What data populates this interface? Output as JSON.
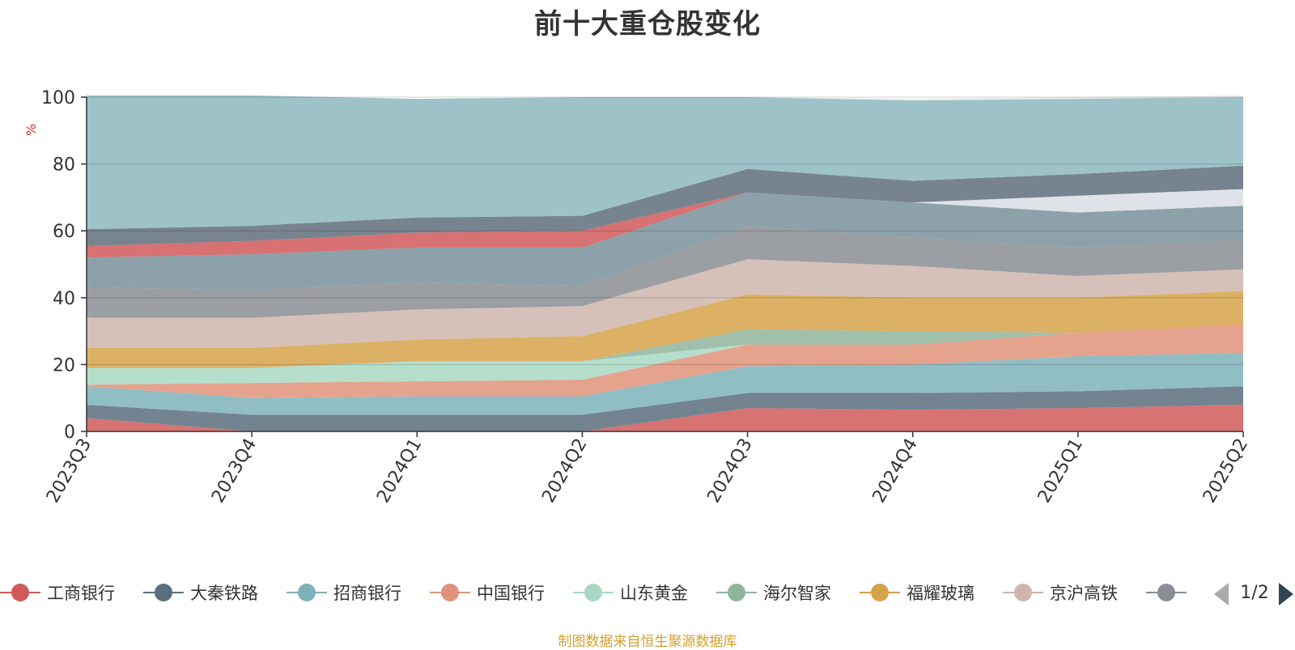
{
  "footer": "制图数据来自恒生聚源数据库",
  "legend_page": "1/2",
  "chart_data": {
    "type": "area",
    "stacked": true,
    "title": "前十大重仓股变化",
    "ylabel": "%",
    "ylim": [
      0,
      100
    ],
    "yticks": [
      0,
      20,
      40,
      60,
      80,
      100
    ],
    "grid": true,
    "legend_position": "bottom",
    "categories": [
      "2023Q3",
      "2023Q4",
      "2024Q1",
      "2024Q2",
      "2024Q3",
      "2024Q4",
      "2025Q1",
      "2025Q2"
    ],
    "series": [
      {
        "name": "工商银行",
        "color": "#d05a5a",
        "values": [
          4,
          0,
          0,
          0,
          7,
          6.5,
          7,
          8
        ]
      },
      {
        "name": "大秦铁路",
        "color": "#5b6e7d",
        "values": [
          4,
          5,
          5,
          5,
          4.5,
          5,
          5,
          5.5
        ]
      },
      {
        "name": "招商银行",
        "color": "#7eb2ba",
        "values": [
          5.5,
          5,
          5.5,
          5.5,
          8,
          8.5,
          10.5,
          10
        ]
      },
      {
        "name": "中国银行",
        "color": "#e0937a",
        "values": [
          0.5,
          4.5,
          4.5,
          5,
          6.5,
          6,
          7,
          8.5
        ]
      },
      {
        "name": "山东黄金",
        "color": "#a8d8c4",
        "values": [
          5,
          4.5,
          6,
          5.5,
          0,
          0,
          0,
          0
        ]
      },
      {
        "name": "海尔智家",
        "color": "#8fb59d",
        "values": [
          0,
          0,
          0,
          0,
          4.5,
          4,
          0,
          0
        ]
      },
      {
        "name": "福耀玻璃",
        "color": "#d6a24a",
        "values": [
          6,
          6,
          6.5,
          7.5,
          10.5,
          10,
          10.5,
          10
        ]
      },
      {
        "name": "京沪高铁",
        "color": "#cfb5ae",
        "values": [
          9,
          9,
          9,
          9,
          10.5,
          9.5,
          6.5,
          6.5
        ]
      },
      {
        "name": "",
        "color": "#8a8d92",
        "values": [
          9,
          8.5,
          8,
          6,
          10,
          8.5,
          8.5,
          9
        ]
      },
      {
        "name": "",
        "color": "#78909a",
        "values": [
          9,
          10.5,
          10.5,
          11.5,
          10,
          10.5,
          10.5,
          10
        ]
      },
      {
        "name": "",
        "color": "#d9dde5",
        "values": [
          0,
          0,
          0,
          0,
          0,
          0,
          5,
          5
        ]
      },
      {
        "name": "",
        "color": "#d0585a",
        "values": [
          3.5,
          4,
          4.5,
          5,
          0,
          0,
          0,
          0
        ]
      },
      {
        "name": "",
        "color": "#5f6f7c",
        "values": [
          5,
          4.5,
          4.5,
          4.5,
          7,
          6.5,
          6.5,
          7
        ]
      },
      {
        "name": "",
        "color": "#8cb8bf",
        "values": [
          40,
          39,
          35.5,
          35.5,
          21.5,
          24,
          22.5,
          20.5
        ]
      },
      {
        "name": "",
        "color": "#e6e6e6",
        "values": [
          0,
          0,
          0,
          0,
          0,
          0.5,
          0.5,
          0.5
        ]
      }
    ]
  }
}
